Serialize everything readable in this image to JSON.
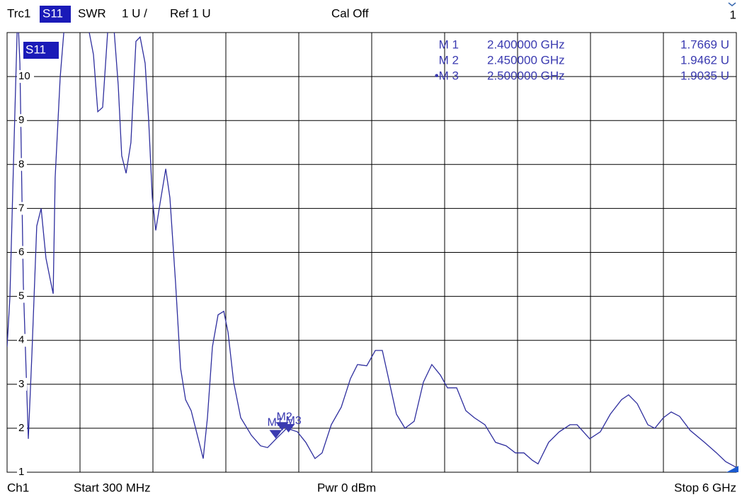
{
  "chart_data": {
    "type": "line",
    "header": {
      "trace": "Trc1",
      "param": "S11",
      "format": "SWR",
      "scale": "1 U /",
      "ref": "Ref 1 U",
      "cal": "Cal Off",
      "window": "1"
    },
    "footer": {
      "channel": "Ch1",
      "start": "Start 300 MHz",
      "power": "Pwr 0 dBm",
      "stop": "Stop 6 GHz"
    },
    "trace_label": "S11",
    "xlim": [
      300,
      6000
    ],
    "xticks": [
      300,
      870,
      1440,
      2010,
      2580,
      3150,
      3720,
      4290,
      4860,
      5430,
      6000
    ],
    "ylim": [
      1,
      11
    ],
    "yticks": [
      1,
      2,
      3,
      4,
      5,
      6,
      7,
      8,
      9,
      10
    ],
    "grid": true,
    "series": [
      {
        "name": "S11",
        "color": "#2e2e9e",
        "x": [
          300,
          322,
          355,
          383,
          400,
          427,
          466,
          494,
          532,
          566,
          604,
          643,
          660,
          676,
          715,
          743,
          853,
          936,
          975,
          1009,
          1047,
          1086,
          1130,
          1169,
          1196,
          1230,
          1268,
          1307,
          1340,
          1379,
          1407,
          1435,
          1462,
          1495,
          1540,
          1573,
          1617,
          1656,
          1695,
          1739,
          1794,
          1833,
          1866,
          1905,
          1949,
          1994,
          2027,
          2071,
          2126,
          2209,
          2281,
          2336,
          2403,
          2458,
          2486,
          2569,
          2635,
          2707,
          2762,
          2834,
          2912,
          2984,
          3039,
          3111,
          3178,
          3233,
          3288,
          3343,
          3410,
          3482,
          3554,
          3620,
          3687,
          3742,
          3814,
          3886,
          3952,
          4035,
          4118,
          4201,
          4273,
          4340,
          4406,
          4450,
          4533,
          4616,
          4700,
          4755,
          4854,
          4937,
          5015,
          5103,
          5158,
          5225,
          5308,
          5363,
          5430,
          5491,
          5557,
          5640,
          5751,
          5845,
          5917,
          6000
        ],
        "values": [
          3.85,
          4.98,
          8.53,
          11.5,
          10.3,
          5.3,
          1.76,
          3.7,
          6.6,
          7.0,
          5.87,
          5.3,
          5.06,
          7.7,
          9.98,
          11.0,
          11.6,
          11.1,
          10.5,
          9.2,
          9.3,
          11.0,
          11.3,
          9.8,
          8.2,
          7.8,
          8.5,
          10.8,
          10.9,
          10.3,
          9.0,
          7.24,
          6.5,
          7.1,
          7.9,
          7.24,
          5.3,
          3.37,
          2.65,
          2.4,
          1.76,
          1.31,
          2.24,
          3.85,
          4.58,
          4.66,
          4.18,
          3.05,
          2.24,
          1.84,
          1.6,
          1.56,
          1.76,
          1.92,
          2.0,
          1.92,
          1.68,
          1.31,
          1.44,
          2.08,
          2.48,
          3.13,
          3.45,
          3.42,
          3.77,
          3.77,
          3.05,
          2.32,
          2.0,
          2.16,
          3.05,
          3.45,
          3.21,
          2.92,
          2.92,
          2.4,
          2.24,
          2.08,
          1.68,
          1.6,
          1.44,
          1.44,
          1.27,
          1.19,
          1.68,
          1.92,
          2.08,
          2.08,
          1.76,
          1.92,
          2.32,
          2.65,
          2.76,
          2.56,
          2.08,
          2.0,
          2.24,
          2.37,
          2.27,
          1.95,
          1.68,
          1.44,
          1.24,
          1.11
        ]
      }
    ],
    "markers": [
      {
        "label": "M 1",
        "tag": "M1",
        "x": 2400,
        "x_label": "2.400000 GHz",
        "value": 1.7669,
        "value_label": "1.7669 U"
      },
      {
        "label": "M 2",
        "tag": "M2",
        "x": 2450,
        "x_label": "2.450000 GHz",
        "value": 1.9462,
        "value_label": "1.9462 U"
      },
      {
        "label": "•M 3",
        "tag": "M3",
        "x": 2500,
        "x_label": "2.500000 GHz",
        "value": 1.9035,
        "value_label": "1.9035 U"
      }
    ]
  }
}
